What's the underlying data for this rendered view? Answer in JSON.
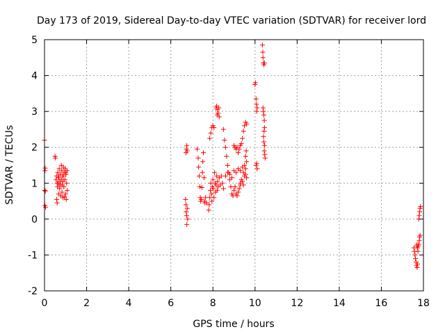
{
  "chart_data": {
    "type": "scatter",
    "title": "Day 173 of 2019, Sidereal Day-to-day VTEC variation (SDTVAR) for receiver lord",
    "xlabel": "GPS time / hours",
    "ylabel": "SDTVAR / TECUs",
    "xlim": [
      0,
      18
    ],
    "ylim": [
      -2,
      5
    ],
    "xticks": [
      0,
      2,
      4,
      6,
      8,
      10,
      12,
      14,
      16,
      18
    ],
    "yticks": [
      -2,
      -1,
      0,
      1,
      2,
      3,
      4,
      5
    ],
    "xtick_labels": [
      "0",
      "2",
      "4",
      "6",
      "8",
      "10",
      "12",
      "14",
      "16",
      "18"
    ],
    "ytick_labels": [
      "-2",
      "-1",
      "0",
      "1",
      "2",
      "3",
      "4",
      "5"
    ],
    "grid": true,
    "marker": "plus",
    "color": "#ff0000",
    "series": [
      {
        "name": "SDTVAR",
        "points": [
          [
            0.0,
            2.2
          ],
          [
            0.02,
            1.35
          ],
          [
            0.03,
            1.42
          ],
          [
            0.01,
            0.8
          ],
          [
            0.04,
            0.78
          ],
          [
            0.02,
            0.38
          ],
          [
            0.05,
            0.33
          ],
          [
            0.5,
            1.75
          ],
          [
            0.52,
            1.7
          ],
          [
            0.55,
            1.1
          ],
          [
            0.57,
            1.2
          ],
          [
            0.58,
            0.55
          ],
          [
            0.6,
            0.45
          ],
          [
            0.62,
            0.9
          ],
          [
            0.63,
            1.3
          ],
          [
            0.65,
            1.0
          ],
          [
            0.67,
            0.7
          ],
          [
            0.68,
            1.15
          ],
          [
            0.7,
            1.4
          ],
          [
            0.72,
            0.85
          ],
          [
            0.73,
            1.05
          ],
          [
            0.75,
            1.25
          ],
          [
            0.77,
            0.65
          ],
          [
            0.78,
            0.95
          ],
          [
            0.8,
            1.5
          ],
          [
            0.82,
            1.35
          ],
          [
            0.83,
            0.75
          ],
          [
            0.85,
            1.2
          ],
          [
            0.87,
            0.6
          ],
          [
            0.88,
            1.05
          ],
          [
            0.9,
            1.45
          ],
          [
            0.92,
            0.9
          ],
          [
            0.93,
            1.3
          ],
          [
            0.95,
            0.62
          ],
          [
            0.97,
            1.1
          ],
          [
            0.98,
            1.4
          ],
          [
            1.0,
            0.7
          ],
          [
            1.02,
            1.25
          ],
          [
            1.03,
            0.55
          ],
          [
            1.05,
            1.0
          ],
          [
            1.07,
            1.35
          ],
          [
            1.08,
            0.8
          ],
          [
            0.6,
            1.0
          ],
          [
            0.7,
            0.95
          ],
          [
            0.8,
            1.1
          ],
          [
            0.9,
            1.2
          ],
          [
            1.0,
            1.3
          ],
          [
            0.65,
            1.2
          ],
          [
            0.85,
            0.95
          ],
          [
            6.7,
            0.55
          ],
          [
            6.72,
            0.4
          ],
          [
            6.73,
            0.2
          ],
          [
            6.75,
            0.1
          ],
          [
            6.76,
            -0.15
          ],
          [
            6.78,
            0.3
          ],
          [
            6.8,
            0.0
          ],
          [
            6.72,
            1.85
          ],
          [
            6.74,
            1.95
          ],
          [
            6.76,
            2.05
          ],
          [
            6.78,
            1.9
          ],
          [
            7.25,
            1.95
          ],
          [
            7.3,
            1.7
          ],
          [
            7.32,
            1.45
          ],
          [
            7.35,
            1.2
          ],
          [
            7.38,
            0.9
          ],
          [
            7.4,
            0.6
          ],
          [
            7.42,
            0.5
          ],
          [
            7.45,
            0.55
          ],
          [
            7.48,
            0.88
          ],
          [
            7.5,
            1.3
          ],
          [
            7.52,
            1.6
          ],
          [
            7.55,
            1.85
          ],
          [
            7.58,
            1.15
          ],
          [
            7.6,
            0.5
          ],
          [
            7.62,
            0.45
          ],
          [
            7.65,
            0.6
          ],
          [
            7.7,
            0.45
          ],
          [
            7.8,
            0.25
          ],
          [
            7.82,
            0.4
          ],
          [
            7.85,
            0.6
          ],
          [
            7.88,
            0.8
          ],
          [
            7.9,
            1.0
          ],
          [
            7.93,
            0.7
          ],
          [
            7.95,
            0.5
          ],
          [
            7.97,
            0.9
          ],
          [
            8.0,
            1.1
          ],
          [
            8.02,
            0.85
          ],
          [
            8.05,
            0.6
          ],
          [
            8.08,
            1.3
          ],
          [
            8.1,
            1.0
          ],
          [
            8.12,
            0.75
          ],
          [
            8.15,
            0.95
          ],
          [
            8.18,
            1.2
          ],
          [
            8.2,
            0.8
          ],
          [
            8.22,
            1.05
          ],
          [
            8.25,
            0.9
          ],
          [
            8.3,
            1.15
          ],
          [
            8.35,
            0.95
          ],
          [
            8.4,
            1.2
          ],
          [
            8.45,
            1.0
          ],
          [
            8.5,
            0.85
          ],
          [
            7.85,
            2.25
          ],
          [
            7.9,
            2.4
          ],
          [
            7.95,
            2.55
          ],
          [
            8.0,
            2.6
          ],
          [
            8.05,
            2.55
          ],
          [
            8.15,
            3.1
          ],
          [
            8.18,
            3.15
          ],
          [
            8.2,
            2.9
          ],
          [
            8.22,
            3.05
          ],
          [
            8.25,
            2.95
          ],
          [
            8.28,
            3.1
          ],
          [
            8.3,
            2.85
          ],
          [
            8.5,
            2.5
          ],
          [
            8.55,
            2.2
          ],
          [
            8.6,
            2.0
          ],
          [
            8.65,
            1.75
          ],
          [
            8.7,
            1.5
          ],
          [
            8.75,
            1.3
          ],
          [
            8.8,
            1.1
          ],
          [
            8.85,
            0.9
          ],
          [
            8.9,
            0.7
          ],
          [
            8.95,
            0.65
          ],
          [
            9.0,
            0.8
          ],
          [
            9.05,
            0.9
          ],
          [
            9.1,
            0.7
          ],
          [
            9.15,
            0.65
          ],
          [
            9.2,
            0.75
          ],
          [
            9.25,
            0.85
          ],
          [
            9.3,
            0.95
          ],
          [
            8.6,
            1.2
          ],
          [
            8.7,
            1.3
          ],
          [
            8.8,
            1.25
          ],
          [
            8.9,
            1.15
          ],
          [
            9.0,
            1.35
          ],
          [
            9.1,
            1.3
          ],
          [
            9.2,
            1.4
          ],
          [
            9.3,
            1.35
          ],
          [
            9.4,
            1.45
          ],
          [
            9.45,
            1.3
          ],
          [
            9.5,
            1.5
          ],
          [
            9.55,
            1.4
          ],
          [
            9.0,
            2.05
          ],
          [
            9.05,
            2.0
          ],
          [
            9.1,
            1.95
          ],
          [
            9.15,
            2.0
          ],
          [
            9.2,
            1.85
          ],
          [
            9.25,
            1.95
          ],
          [
            9.3,
            2.05
          ],
          [
            9.35,
            2.1
          ],
          [
            9.4,
            2.25
          ],
          [
            9.45,
            2.45
          ],
          [
            9.5,
            2.6
          ],
          [
            9.55,
            2.7
          ],
          [
            9.6,
            2.65
          ],
          [
            9.3,
            1.0
          ],
          [
            9.35,
            1.1
          ],
          [
            9.4,
            1.05
          ],
          [
            9.45,
            0.95
          ],
          [
            9.5,
            1.2
          ],
          [
            9.55,
            1.25
          ],
          [
            9.6,
            1.15
          ],
          [
            9.6,
            1.6
          ],
          [
            9.58,
            1.9
          ],
          [
            9.55,
            1.75
          ],
          [
            10.0,
            3.75
          ],
          [
            10.02,
            3.8
          ],
          [
            10.05,
            3.35
          ],
          [
            10.07,
            3.2
          ],
          [
            10.1,
            3.1
          ],
          [
            10.08,
            3.0
          ],
          [
            10.05,
            1.5
          ],
          [
            10.08,
            1.55
          ],
          [
            10.1,
            1.4
          ],
          [
            10.35,
            4.85
          ],
          [
            10.37,
            4.65
          ],
          [
            10.38,
            4.5
          ],
          [
            10.4,
            4.35
          ],
          [
            10.42,
            4.3
          ],
          [
            10.45,
            4.35
          ],
          [
            10.38,
            3.1
          ],
          [
            10.4,
            3.0
          ],
          [
            10.42,
            2.9
          ],
          [
            10.44,
            2.75
          ],
          [
            10.45,
            2.55
          ],
          [
            10.43,
            2.45
          ],
          [
            10.4,
            2.3
          ],
          [
            10.42,
            2.15
          ],
          [
            10.45,
            2.05
          ],
          [
            10.44,
            1.9
          ],
          [
            10.46,
            1.8
          ],
          [
            10.48,
            1.7
          ],
          [
            17.55,
            -0.8
          ],
          [
            17.57,
            -0.9
          ],
          [
            17.6,
            -1.0
          ],
          [
            17.62,
            -1.1
          ],
          [
            17.65,
            -1.2
          ],
          [
            17.67,
            -1.3
          ],
          [
            17.7,
            -1.35
          ],
          [
            17.72,
            -1.25
          ],
          [
            17.68,
            -0.75
          ],
          [
            17.7,
            -0.7
          ],
          [
            17.72,
            -0.8
          ],
          [
            17.74,
            -0.9
          ],
          [
            17.76,
            -0.75
          ],
          [
            17.78,
            -0.7
          ],
          [
            17.8,
            -0.6
          ],
          [
            17.82,
            -0.5
          ],
          [
            17.84,
            -0.45
          ],
          [
            17.78,
            0.0
          ],
          [
            17.8,
            0.1
          ],
          [
            17.82,
            0.2
          ],
          [
            17.84,
            0.3
          ],
          [
            17.86,
            0.35
          ]
        ]
      }
    ]
  }
}
